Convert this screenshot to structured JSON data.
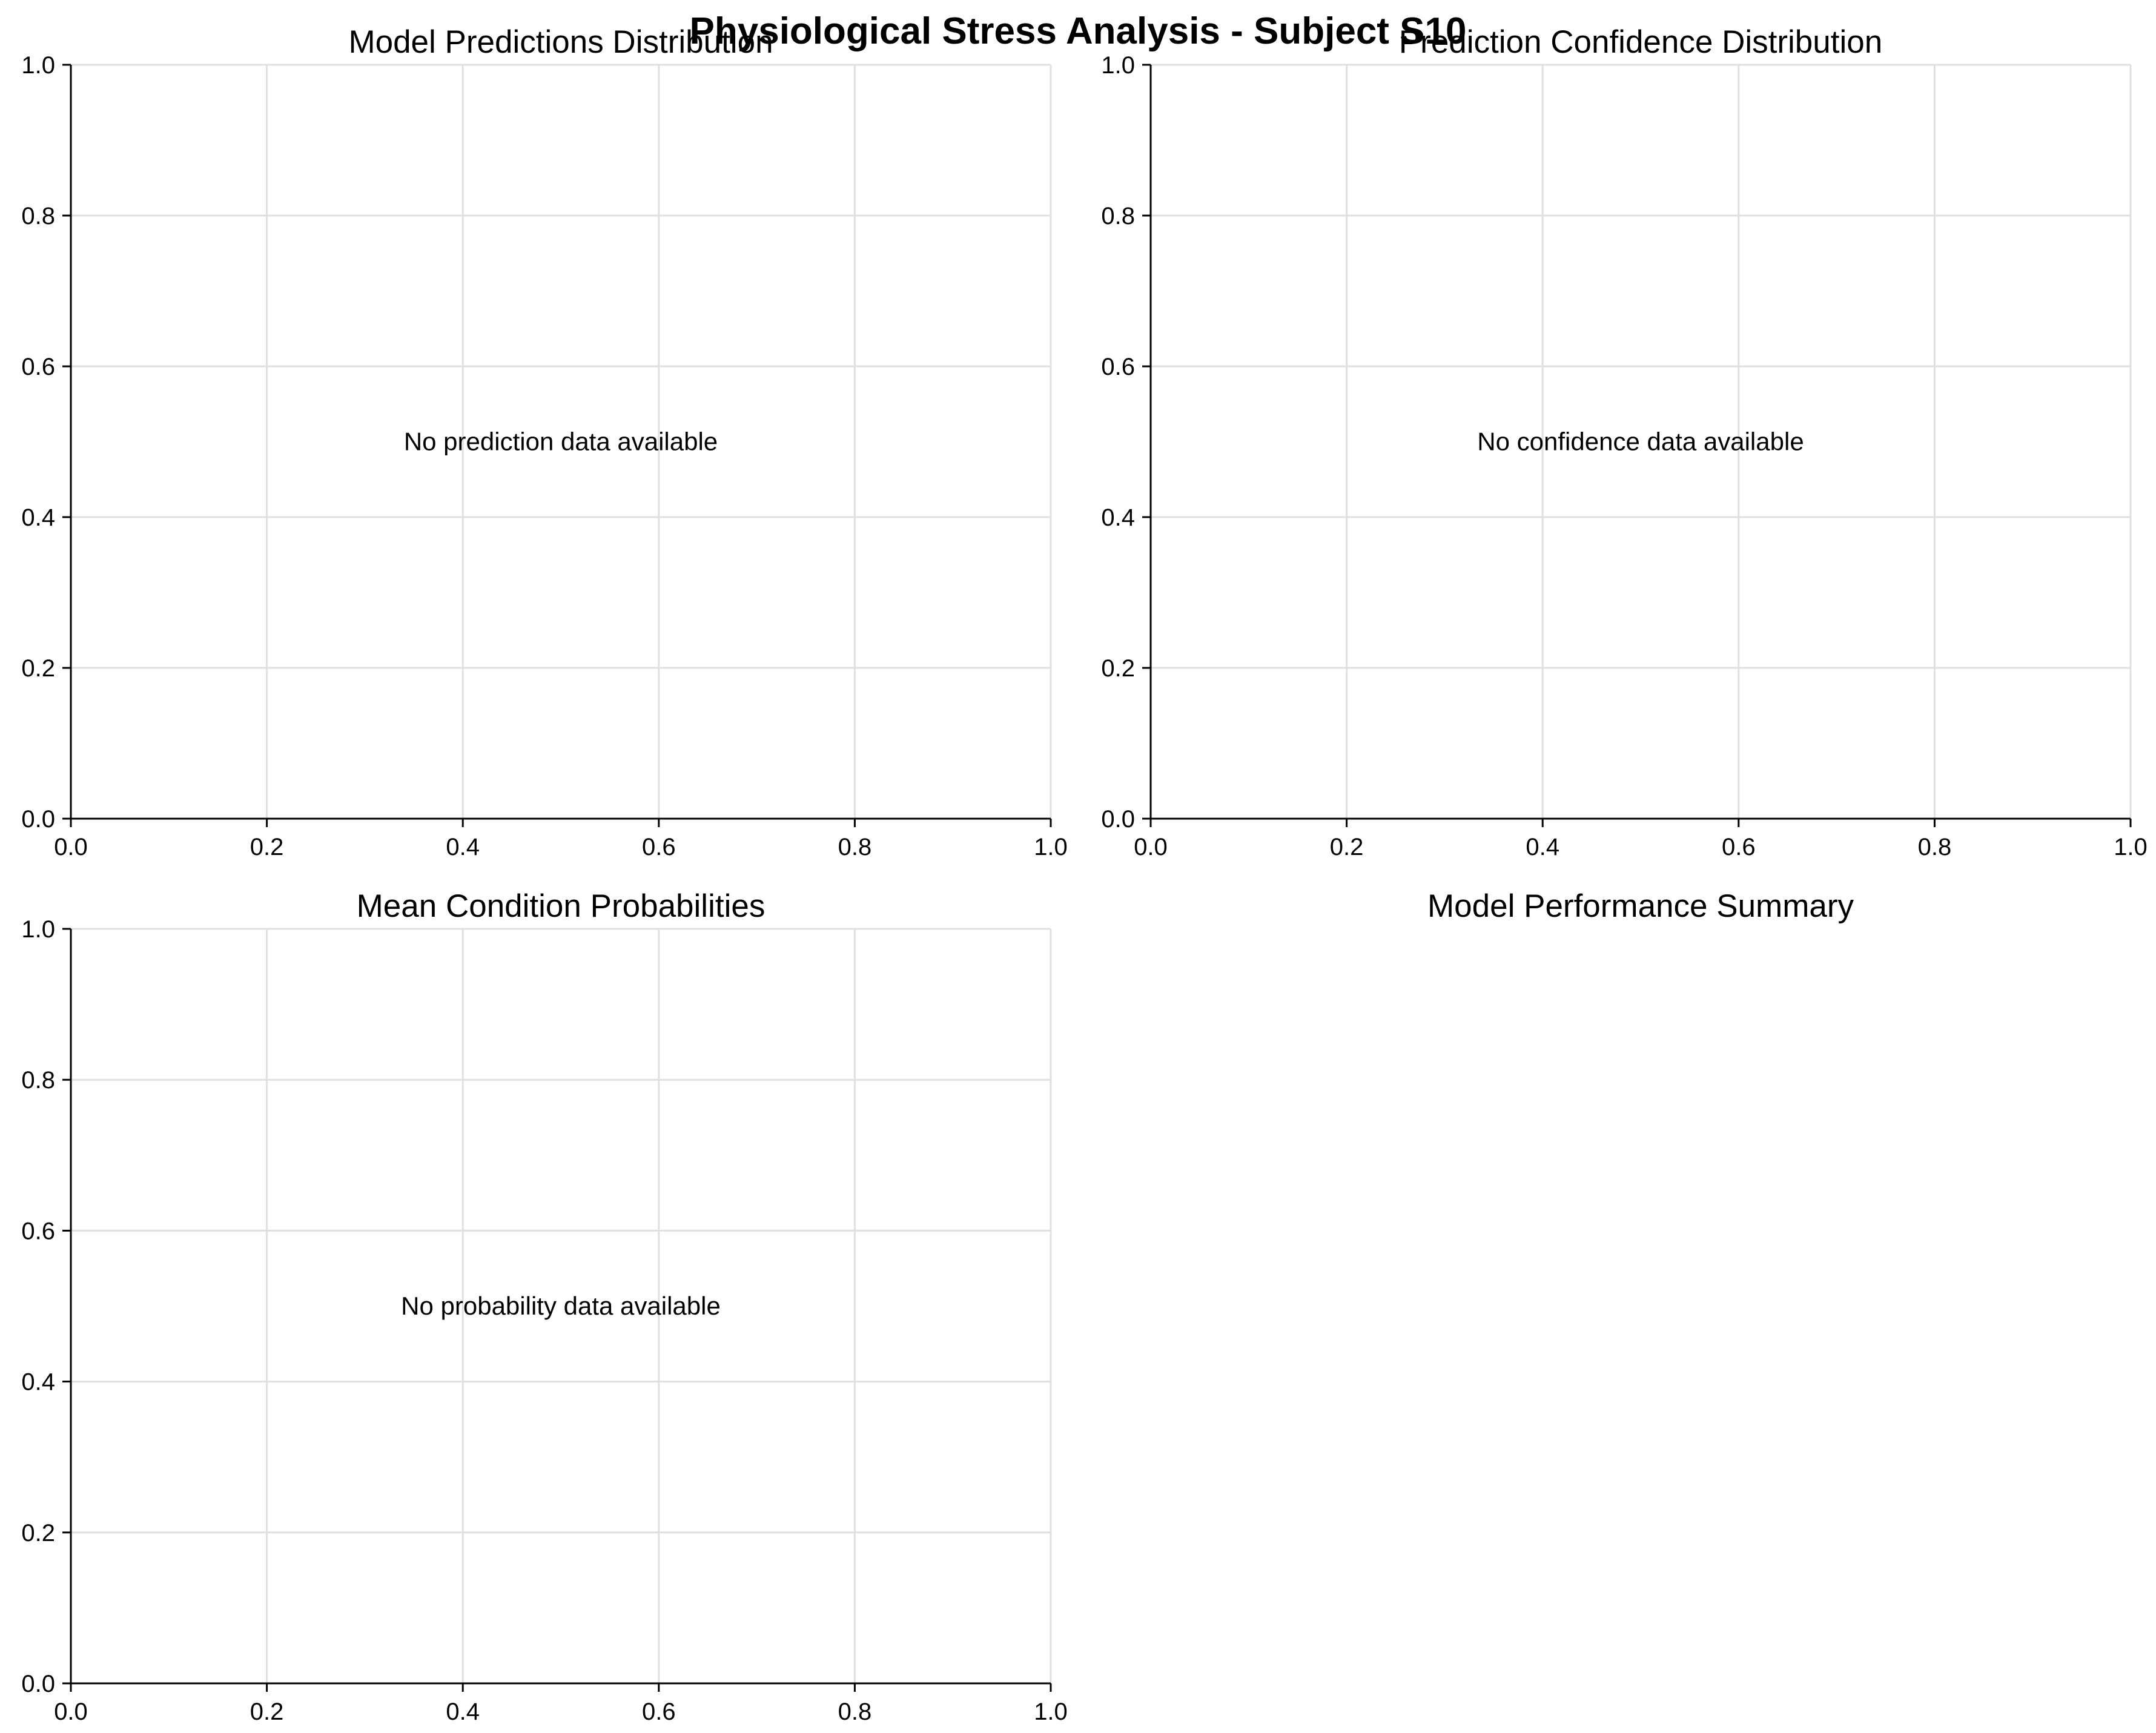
{
  "title": "Physiological Stress Analysis - Subject S10",
  "chart_data": [
    {
      "type": "bar",
      "title": "Model Predictions Distribution",
      "xlim": [
        0,
        1
      ],
      "ylim": [
        0,
        1
      ],
      "x_ticks": [
        "0.0",
        "0.2",
        "0.4",
        "0.6",
        "0.8",
        "1.0"
      ],
      "y_ticks": [
        "0.0",
        "0.2",
        "0.4",
        "0.6",
        "0.8",
        "1.0"
      ],
      "grid": true,
      "message": "No prediction data available"
    },
    {
      "type": "bar",
      "title": "Prediction Confidence Distribution",
      "xlim": [
        0,
        1
      ],
      "ylim": [
        0,
        1
      ],
      "x_ticks": [
        "0.0",
        "0.2",
        "0.4",
        "0.6",
        "0.8",
        "1.0"
      ],
      "y_ticks": [
        "0.0",
        "0.2",
        "0.4",
        "0.6",
        "0.8",
        "1.0"
      ],
      "grid": true,
      "message": "No confidence data available"
    },
    {
      "type": "bar",
      "title": "Mean Condition Probabilities",
      "xlim": [
        0,
        1
      ],
      "ylim": [
        0,
        1
      ],
      "x_ticks": [
        "0.0",
        "0.2",
        "0.4",
        "0.6",
        "0.8",
        "1.0"
      ],
      "y_ticks": [
        "0.0",
        "0.2",
        "0.4",
        "0.6",
        "0.8",
        "1.0"
      ],
      "grid": true,
      "message": "No probability data available"
    },
    {
      "type": "table",
      "title": "Model Performance Summary",
      "axis_visible": false
    }
  ]
}
